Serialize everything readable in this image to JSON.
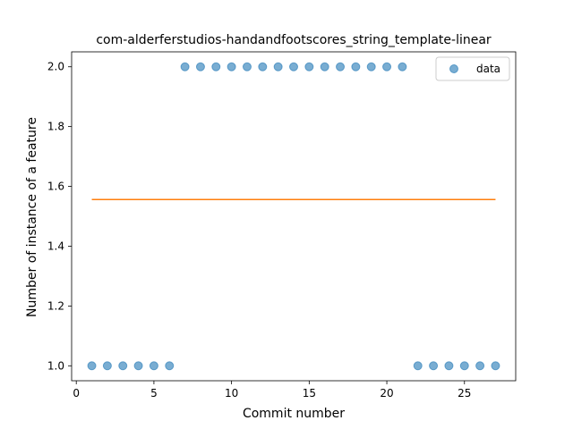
{
  "chart_data": {
    "type": "scatter",
    "title": "com-alderferstudios-handandfootscores_string_template-linear",
    "xlabel": "Commit number",
    "ylabel": "Number of instance of a feature",
    "xlim": [
      -0.3,
      28.3
    ],
    "ylim": [
      0.95,
      2.05
    ],
    "xticks": [
      0,
      5,
      10,
      15,
      20,
      25
    ],
    "yticks": [
      1.0,
      1.2,
      1.4,
      1.6,
      1.8,
      2.0
    ],
    "xtick_labels": [
      "0",
      "5",
      "10",
      "15",
      "20",
      "25"
    ],
    "ytick_labels": [
      "1.0",
      "1.2",
      "1.4",
      "1.6",
      "1.8",
      "2.0"
    ],
    "grid": false,
    "legend": {
      "position": "top-right",
      "entries": [
        "data"
      ]
    },
    "series": [
      {
        "name": "data",
        "type": "scatter",
        "color": "#1f77b4",
        "x": [
          1,
          2,
          3,
          4,
          5,
          6,
          7,
          8,
          9,
          10,
          11,
          12,
          13,
          14,
          15,
          16,
          17,
          18,
          19,
          20,
          21,
          22,
          23,
          24,
          25,
          26,
          27
        ],
        "y": [
          1,
          1,
          1,
          1,
          1,
          1,
          2,
          2,
          2,
          2,
          2,
          2,
          2,
          2,
          2,
          2,
          2,
          2,
          2,
          2,
          2,
          1,
          1,
          1,
          1,
          1,
          1
        ]
      },
      {
        "type": "line",
        "color": "#ff7f0e",
        "x": [
          1,
          27
        ],
        "y": [
          1.556,
          1.556
        ]
      }
    ]
  }
}
